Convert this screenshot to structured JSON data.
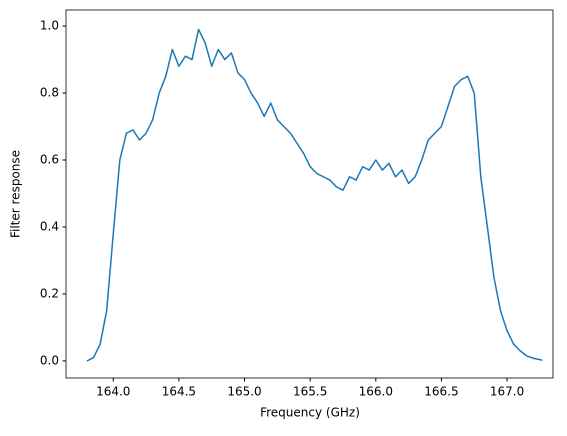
{
  "chart_data": {
    "type": "line",
    "xlabel": "Frequency (GHz)",
    "ylabel": "Filter response",
    "x": [
      163.8,
      163.85,
      163.9,
      163.95,
      164.0,
      164.05,
      164.1,
      164.15,
      164.2,
      164.25,
      164.3,
      164.35,
      164.4,
      164.45,
      164.5,
      164.55,
      164.6,
      164.65,
      164.7,
      164.75,
      164.8,
      164.85,
      164.9,
      164.95,
      165.0,
      165.05,
      165.1,
      165.15,
      165.2,
      165.25,
      165.3,
      165.35,
      165.4,
      165.45,
      165.5,
      165.55,
      165.6,
      165.65,
      165.7,
      165.75,
      165.8,
      165.85,
      165.9,
      165.95,
      166.0,
      166.05,
      166.1,
      166.15,
      166.2,
      166.25,
      166.3,
      166.35,
      166.4,
      166.45,
      166.5,
      166.55,
      166.6,
      166.65,
      166.7,
      166.75,
      166.8,
      166.85,
      166.9,
      166.95,
      167.0,
      167.05,
      167.1,
      167.15,
      167.2,
      167.27
    ],
    "series": [
      {
        "color": "#1f77b4",
        "values": [
          0.0,
          0.01,
          0.05,
          0.15,
          0.38,
          0.6,
          0.68,
          0.69,
          0.66,
          0.68,
          0.72,
          0.8,
          0.85,
          0.93,
          0.88,
          0.91,
          0.9,
          0.99,
          0.95,
          0.88,
          0.93,
          0.9,
          0.92,
          0.86,
          0.84,
          0.8,
          0.77,
          0.73,
          0.77,
          0.72,
          0.7,
          0.68,
          0.65,
          0.62,
          0.58,
          0.56,
          0.55,
          0.54,
          0.52,
          0.51,
          0.55,
          0.54,
          0.58,
          0.57,
          0.6,
          0.57,
          0.59,
          0.55,
          0.57,
          0.53,
          0.55,
          0.6,
          0.66,
          0.68,
          0.7,
          0.76,
          0.82,
          0.84,
          0.85,
          0.8,
          0.55,
          0.4,
          0.25,
          0.15,
          0.09,
          0.05,
          0.03,
          0.015,
          0.008,
          0.002
        ]
      }
    ],
    "xlim": [
      163.64,
      167.35
    ],
    "ylim": [
      -0.051,
      1.048
    ],
    "xticks": [
      {
        "value": 164,
        "label": "164.0"
      },
      {
        "value": 164.5,
        "label": "164.5"
      },
      {
        "value": 165,
        "label": "165.0"
      },
      {
        "value": 165.5,
        "label": "165.5"
      },
      {
        "value": 166,
        "label": "166.0"
      },
      {
        "value": 166.5,
        "label": "166.5"
      },
      {
        "value": 167,
        "label": "167.0"
      }
    ],
    "yticks": [
      {
        "value": 0,
        "label": "0.0"
      },
      0.2,
      0.4,
      0.6,
      0.8,
      {
        "value": 1,
        "label": "1.0"
      }
    ]
  }
}
